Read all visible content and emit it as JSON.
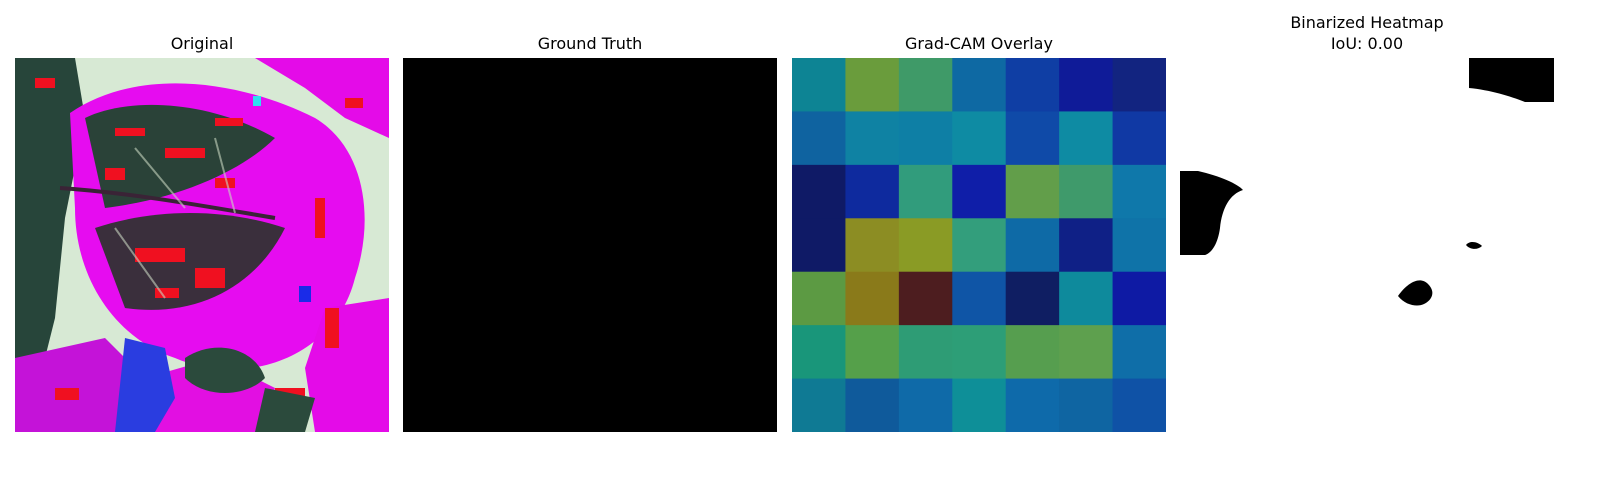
{
  "panels": [
    {
      "title": "Original"
    },
    {
      "title": "Ground Truth"
    },
    {
      "title": "Grad-CAM Overlay"
    },
    {
      "title": "Binarized Heatmap",
      "subtitle": "IoU: 0.00"
    }
  ],
  "gradcam": {
    "cells": [
      [
        "#0d8494",
        "#6a9c3c",
        "#3f9a68",
        "#0e69a3",
        "#0f3ea4",
        "#0f1b98",
        "#122480"
      ],
      [
        "#0f63a0",
        "#0f82a3",
        "#0e7fa5",
        "#0e8ba3",
        "#0f4aa8",
        "#0e8ba3",
        "#1039a4"
      ],
      [
        "#0f1a66",
        "#0e2a9e",
        "#319c7c",
        "#0f1ea8",
        "#629e4a",
        "#3f9a6b",
        "#0f78aa"
      ],
      [
        "#0f1a66",
        "#8c8d23",
        "#8a9b25",
        "#339e7c",
        "#0e6aa6",
        "#0f2086",
        "#0f73a8"
      ],
      [
        "#5c9a43",
        "#8a7a1a",
        "#4d1d1f",
        "#0f55a6",
        "#0f1e62",
        "#0e8a9c",
        "#0e1aa4"
      ],
      [
        "#19967a",
        "#55a04a",
        "#2e9c75",
        "#2d9e77",
        "#569e4f",
        "#5ea04e",
        "#0f6ea8"
      ],
      [
        "#0f7a94",
        "#0f5a9b",
        "#0f6aa8",
        "#0e8f98",
        "#0e6aaa",
        "#0f65a2",
        "#0f52a6"
      ]
    ]
  }
}
